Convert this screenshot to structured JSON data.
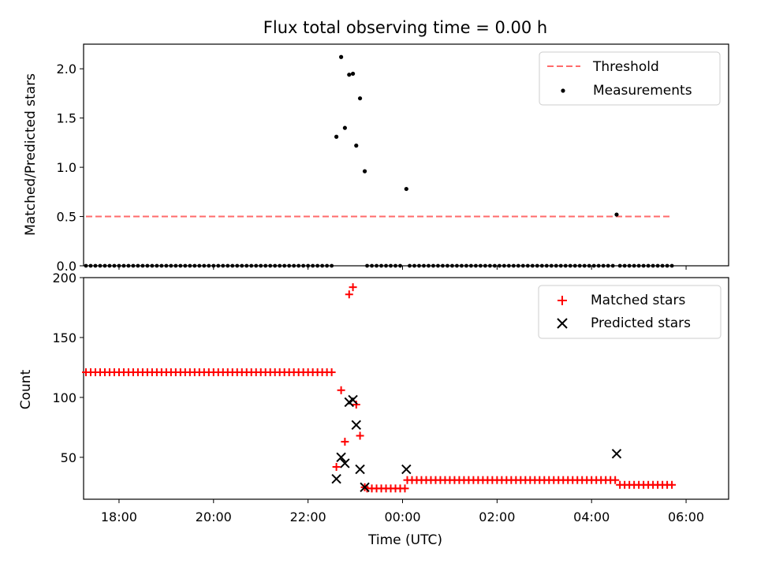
{
  "colors": {
    "threshold": "#ff6b6b",
    "measurement": "#000000",
    "matched": "#ff0000",
    "predicted": "#000000"
  },
  "chart_data": [
    {
      "type": "scatter",
      "title": "Flux total observing time = 0.00 h",
      "xlabel": "",
      "ylabel": "Matched/Predicted stars",
      "xlim": [
        -6.75,
        6.9
      ],
      "ylim": [
        0,
        2.25
      ],
      "yticks": [
        0.0,
        0.5,
        1.0,
        1.5,
        2.0
      ],
      "ytick_labels": [
        "0.0",
        "0.5",
        "1.0",
        "1.5",
        "2.0"
      ],
      "legend": [
        "Threshold",
        "Measurements"
      ],
      "legend_position": "top-right",
      "threshold": {
        "name": "Threshold",
        "y": 0.5,
        "x_start": -6.7,
        "x_end": 5.7
      },
      "measurements": {
        "name": "Measurements",
        "zero_runs": [
          {
            "start": -6.7,
            "end": -1.55,
            "step": 0.1
          },
          {
            "start": -0.75,
            "end": -0.05,
            "step": 0.1
          },
          {
            "start": 0.15,
            "end": 4.5,
            "step": 0.1
          },
          {
            "start": 4.6,
            "end": 5.7,
            "step": 0.1
          }
        ],
        "points": [
          {
            "x": -1.4,
            "y": 1.31
          },
          {
            "x": -1.3,
            "y": 2.12
          },
          {
            "x": -1.22,
            "y": 1.4
          },
          {
            "x": -1.13,
            "y": 1.94
          },
          {
            "x": -1.05,
            "y": 1.95
          },
          {
            "x": -0.98,
            "y": 1.22
          },
          {
            "x": -0.9,
            "y": 1.7
          },
          {
            "x": -0.8,
            "y": 0.96
          },
          {
            "x": 0.08,
            "y": 0.78
          },
          {
            "x": 4.53,
            "y": 0.52
          }
        ]
      }
    },
    {
      "type": "scatter",
      "title": "",
      "xlabel": "Time (UTC)",
      "ylabel": "Count",
      "xlim": [
        -6.75,
        6.9
      ],
      "ylim": [
        15,
        200
      ],
      "xticks": [
        -6,
        -4,
        -2,
        0,
        2,
        4,
        6
      ],
      "xtick_labels": [
        "18:00",
        "20:00",
        "22:00",
        "00:00",
        "02:00",
        "04:00",
        "06:00"
      ],
      "yticks": [
        50,
        100,
        150,
        200
      ],
      "ytick_labels": [
        "50",
        "100",
        "150",
        "200"
      ],
      "legend": [
        "Matched stars",
        "Predicted stars"
      ],
      "legend_position": "top-right",
      "matched_stars": {
        "name": "Matched stars",
        "runs": [
          {
            "start": -6.7,
            "end": -1.55,
            "step": 0.1,
            "y": 121
          },
          {
            "start": -0.75,
            "end": 0.0,
            "step": 0.1,
            "y": 24
          },
          {
            "start": 0.1,
            "end": 4.5,
            "step": 0.1,
            "y": 31
          },
          {
            "start": 4.6,
            "end": 5.7,
            "step": 0.1,
            "y": 27
          }
        ],
        "points": [
          {
            "x": -1.4,
            "y": 42
          },
          {
            "x": -1.3,
            "y": 106
          },
          {
            "x": -1.22,
            "y": 63
          },
          {
            "x": -1.13,
            "y": 186
          },
          {
            "x": -1.05,
            "y": 192
          },
          {
            "x": -0.98,
            "y": 94
          },
          {
            "x": -0.9,
            "y": 68
          },
          {
            "x": -0.8,
            "y": 25
          }
        ]
      },
      "predicted_stars": {
        "name": "Predicted stars",
        "points": [
          {
            "x": -1.4,
            "y": 32
          },
          {
            "x": -1.3,
            "y": 50
          },
          {
            "x": -1.22,
            "y": 45
          },
          {
            "x": -1.13,
            "y": 96
          },
          {
            "x": -1.05,
            "y": 98
          },
          {
            "x": -0.98,
            "y": 77
          },
          {
            "x": -0.9,
            "y": 40
          },
          {
            "x": -0.8,
            "y": 25
          },
          {
            "x": 0.08,
            "y": 40
          },
          {
            "x": 4.53,
            "y": 53
          }
        ]
      }
    }
  ]
}
